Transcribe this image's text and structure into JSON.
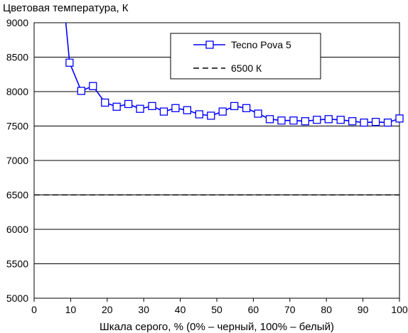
{
  "chart_data": {
    "type": "line",
    "ylabel": "Цветовая температура, К",
    "xlabel": "Шкала серого, % (0% – черный, 100% – белый)",
    "xlim": [
      0,
      100
    ],
    "ylim": [
      5000,
      9000
    ],
    "xticks": [
      0,
      10,
      20,
      30,
      40,
      50,
      60,
      70,
      80,
      90,
      100
    ],
    "yticks": [
      5000,
      5500,
      6000,
      6500,
      7000,
      7500,
      8000,
      8500,
      9000
    ],
    "grid": "horizontal",
    "legend_position": "top-right",
    "series": [
      {
        "name": "Tecno Pova 5",
        "style": "solid-with-square-markers",
        "color": "#0000ff",
        "line_start": [
          8.5,
          9100
        ],
        "x": [
          9.7,
          12.9,
          16.1,
          19.4,
          22.6,
          25.8,
          29.0,
          32.3,
          35.5,
          38.7,
          41.9,
          45.2,
          48.4,
          51.6,
          54.8,
          58.1,
          61.3,
          64.5,
          67.7,
          71.0,
          74.2,
          77.4,
          80.6,
          83.9,
          87.1,
          90.3,
          93.5,
          96.8,
          100.0
        ],
        "values": [
          8420,
          8010,
          8080,
          7840,
          7780,
          7820,
          7750,
          7790,
          7710,
          7760,
          7730,
          7670,
          7650,
          7710,
          7790,
          7760,
          7680,
          7600,
          7580,
          7580,
          7570,
          7590,
          7600,
          7590,
          7570,
          7550,
          7560,
          7550,
          7610
        ]
      },
      {
        "name": "6500 К",
        "style": "dashed",
        "color": "#000000",
        "x": [
          0,
          100
        ],
        "values": [
          6500,
          6500
        ]
      }
    ]
  }
}
